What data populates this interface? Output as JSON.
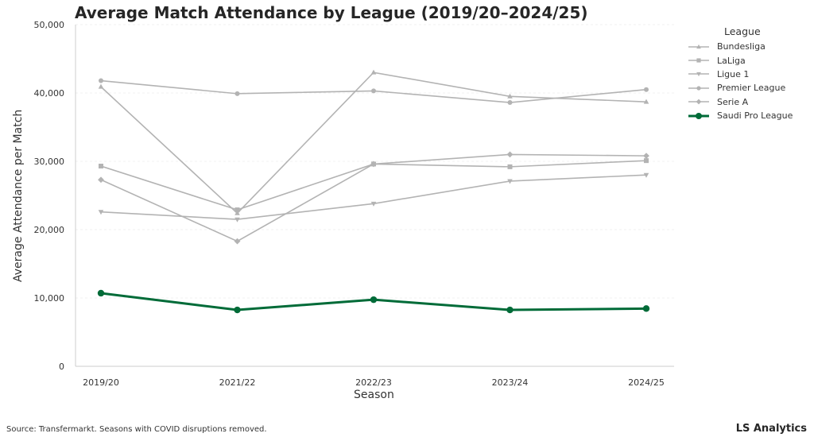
{
  "chart_data": {
    "type": "line",
    "title": "Average Match Attendance by League (2019/20–2024/25)",
    "xlabel": "Season",
    "ylabel": "Average Attendance per Match",
    "categories": [
      "2019/20",
      "2021/22",
      "2022/23",
      "2023/24",
      "2024/25"
    ],
    "ylim": [
      0,
      50000
    ],
    "yticks": [
      0,
      10000,
      20000,
      30000,
      40000,
      50000
    ],
    "ytick_labels": [
      "0",
      "10,000",
      "20,000",
      "30,000",
      "40,000",
      "50,000"
    ],
    "grid": true,
    "legend_title": "League",
    "legend_position": "right",
    "series": [
      {
        "name": "Bundesliga",
        "marker": "triangle-up",
        "color": "#b3b3b3",
        "values": [
          40900,
          22400,
          43000,
          39500,
          38700
        ]
      },
      {
        "name": "LaLiga",
        "marker": "square",
        "color": "#b3b3b3",
        "values": [
          29300,
          22900,
          29600,
          29200,
          30100
        ]
      },
      {
        "name": "Ligue 1",
        "marker": "triangle-down",
        "color": "#b3b3b3",
        "values": [
          22600,
          21500,
          23800,
          27100,
          28000
        ]
      },
      {
        "name": "Premier League",
        "marker": "circle",
        "color": "#b3b3b3",
        "values": [
          41800,
          39900,
          40300,
          38600,
          40500
        ]
      },
      {
        "name": "Serie A",
        "marker": "diamond",
        "color": "#b3b3b3",
        "values": [
          27300,
          18300,
          29600,
          31000,
          30800
        ]
      },
      {
        "name": "Saudi Pro League",
        "marker": "circle",
        "color": "#006b38",
        "highlight": true,
        "values": [
          10700,
          8250,
          9750,
          8250,
          8450
        ]
      }
    ]
  },
  "footer": {
    "source": "Source: Transfermarkt. Seasons with COVID disruptions removed.",
    "brand": "LS Analytics"
  }
}
